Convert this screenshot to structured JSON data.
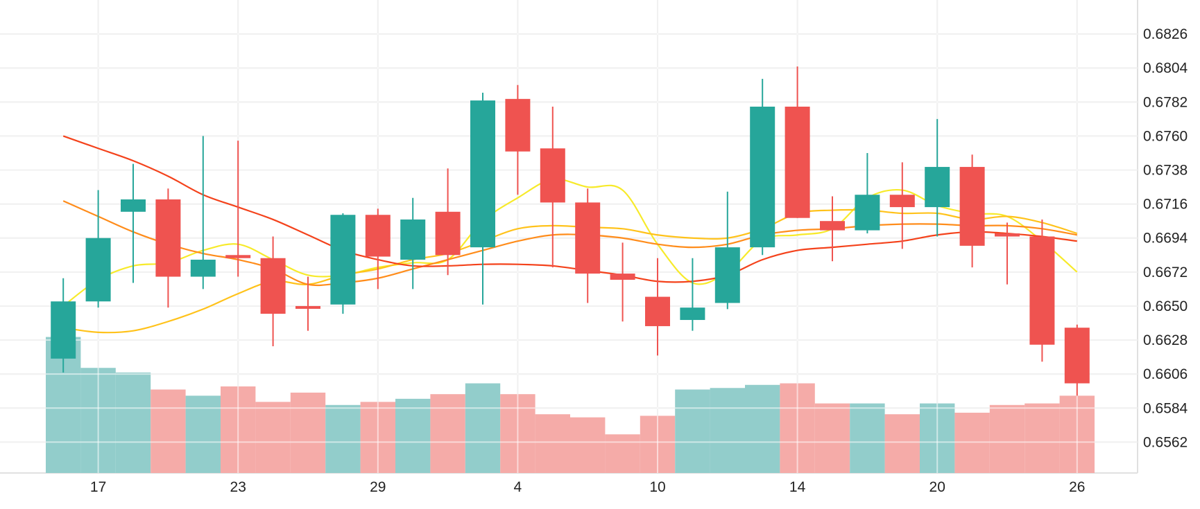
{
  "chart_data": {
    "type": "candlestick",
    "y_ticks": [
      "0.6826",
      "0.6804",
      "0.6782",
      "0.6760",
      "0.6738",
      "0.6716",
      "0.6694",
      "0.6672",
      "0.6650",
      "0.6628",
      "0.6606",
      "0.6584",
      "0.6562"
    ],
    "y_tick_values": [
      0.6826,
      0.6804,
      0.6782,
      0.676,
      0.6738,
      0.6716,
      0.6694,
      0.6672,
      0.665,
      0.6628,
      0.6606,
      0.6584,
      0.6562
    ],
    "y_axis_position": "right",
    "ylim": [
      0.6542,
      0.6848
    ],
    "x_ticks": [
      {
        "label": "17",
        "index": 1.5
      },
      {
        "label": "23",
        "index": 5.5
      },
      {
        "label": "29",
        "index": 9.5
      },
      {
        "label": "4",
        "index": 13.5
      },
      {
        "label": "10",
        "index": 17.5
      },
      {
        "label": "14",
        "index": 21.5
      },
      {
        "label": "20",
        "index": 25.5
      },
      {
        "label": "26",
        "index": 29.5
      }
    ],
    "grid": true,
    "colors": {
      "up": "#26a69a",
      "down": "#ef5350",
      "up_volume": "#92cdcb",
      "down_volume": "#f5aba8",
      "grid": "#e0e0e0",
      "ma_lines": [
        "#f7ea2a",
        "#ffc21a",
        "#ff8c1a",
        "#f4421b"
      ]
    },
    "candles": [
      {
        "o": 0.6616,
        "h": 0.6668,
        "l": 0.6607,
        "c": 0.6653
      },
      {
        "o": 0.6653,
        "h": 0.6725,
        "l": 0.6649,
        "c": 0.6694
      },
      {
        "o": 0.6711,
        "h": 0.6742,
        "l": 0.6665,
        "c": 0.6719
      },
      {
        "o": 0.6719,
        "h": 0.6726,
        "l": 0.6649,
        "c": 0.6669
      },
      {
        "o": 0.6669,
        "h": 0.676,
        "l": 0.6661,
        "c": 0.668
      },
      {
        "o": 0.6683,
        "h": 0.6757,
        "l": 0.6669,
        "c": 0.6681
      },
      {
        "o": 0.6681,
        "h": 0.6695,
        "l": 0.6624,
        "c": 0.6645
      },
      {
        "o": 0.665,
        "h": 0.6669,
        "l": 0.6634,
        "c": 0.6649
      },
      {
        "o": 0.6651,
        "h": 0.671,
        "l": 0.6645,
        "c": 0.6709
      },
      {
        "o": 0.6709,
        "h": 0.6713,
        "l": 0.6661,
        "c": 0.6682
      },
      {
        "o": 0.668,
        "h": 0.672,
        "l": 0.6661,
        "c": 0.6706
      },
      {
        "o": 0.6711,
        "h": 0.6739,
        "l": 0.667,
        "c": 0.6683
      },
      {
        "o": 0.6688,
        "h": 0.6788,
        "l": 0.6651,
        "c": 0.6783
      },
      {
        "o": 0.6784,
        "h": 0.6793,
        "l": 0.6722,
        "c": 0.675
      },
      {
        "o": 0.6752,
        "h": 0.6779,
        "l": 0.6675,
        "c": 0.6717
      },
      {
        "o": 0.6717,
        "h": 0.6726,
        "l": 0.6652,
        "c": 0.6671
      },
      {
        "o": 0.6671,
        "h": 0.6691,
        "l": 0.664,
        "c": 0.6667
      },
      {
        "o": 0.6656,
        "h": 0.6681,
        "l": 0.6618,
        "c": 0.6637
      },
      {
        "o": 0.6641,
        "h": 0.6681,
        "l": 0.6634,
        "c": 0.6649
      },
      {
        "o": 0.6652,
        "h": 0.6724,
        "l": 0.6648,
        "c": 0.6688
      },
      {
        "o": 0.6688,
        "h": 0.6797,
        "l": 0.6683,
        "c": 0.6779
      },
      {
        "o": 0.6779,
        "h": 0.6805,
        "l": 0.6707,
        "c": 0.6707
      },
      {
        "o": 0.6705,
        "h": 0.6721,
        "l": 0.6679,
        "c": 0.6699
      },
      {
        "o": 0.6699,
        "h": 0.6749,
        "l": 0.6697,
        "c": 0.6722
      },
      {
        "o": 0.6722,
        "h": 0.6743,
        "l": 0.6687,
        "c": 0.6714
      },
      {
        "o": 0.6714,
        "h": 0.6771,
        "l": 0.6695,
        "c": 0.674
      },
      {
        "o": 0.674,
        "h": 0.6748,
        "l": 0.6675,
        "c": 0.6689
      },
      {
        "o": 0.6697,
        "h": 0.6704,
        "l": 0.6664,
        "c": 0.6695
      },
      {
        "o": 0.6695,
        "h": 0.6706,
        "l": 0.6614,
        "c": 0.6625
      },
      {
        "o": 0.6636,
        "h": 0.6638,
        "l": 0.6592,
        "c": 0.66
      }
    ],
    "volume_blocks": [
      {
        "start": 0,
        "end": 1,
        "top_price": 0.663,
        "dir": "up"
      },
      {
        "start": 1,
        "end": 2,
        "top_price": 0.661,
        "dir": "up"
      },
      {
        "start": 2,
        "end": 3,
        "top_price": 0.6607,
        "dir": "up"
      },
      {
        "start": 3,
        "end": 4,
        "top_price": 0.6596,
        "dir": "down"
      },
      {
        "start": 4,
        "end": 5,
        "top_price": 0.6592,
        "dir": "up"
      },
      {
        "start": 5,
        "end": 6,
        "top_price": 0.6598,
        "dir": "down"
      },
      {
        "start": 6,
        "end": 7,
        "top_price": 0.6588,
        "dir": "down"
      },
      {
        "start": 7,
        "end": 8,
        "top_price": 0.6594,
        "dir": "down"
      },
      {
        "start": 8,
        "end": 9,
        "top_price": 0.6586,
        "dir": "up"
      },
      {
        "start": 9,
        "end": 10,
        "top_price": 0.6588,
        "dir": "down"
      },
      {
        "start": 10,
        "end": 11,
        "top_price": 0.659,
        "dir": "up"
      },
      {
        "start": 11,
        "end": 12,
        "top_price": 0.6593,
        "dir": "down"
      },
      {
        "start": 12,
        "end": 13,
        "top_price": 0.66,
        "dir": "up"
      },
      {
        "start": 13,
        "end": 14,
        "top_price": 0.6593,
        "dir": "down"
      },
      {
        "start": 14,
        "end": 15,
        "top_price": 0.658,
        "dir": "down"
      },
      {
        "start": 15,
        "end": 16,
        "top_price": 0.6578,
        "dir": "down"
      },
      {
        "start": 16,
        "end": 17,
        "top_price": 0.6567,
        "dir": "down"
      },
      {
        "start": 17,
        "end": 18,
        "top_price": 0.6579,
        "dir": "down"
      },
      {
        "start": 18,
        "end": 19,
        "top_price": 0.6596,
        "dir": "up"
      },
      {
        "start": 19,
        "end": 20,
        "top_price": 0.6597,
        "dir": "up"
      },
      {
        "start": 20,
        "end": 21,
        "top_price": 0.6599,
        "dir": "up"
      },
      {
        "start": 21,
        "end": 22,
        "top_price": 0.66,
        "dir": "down"
      },
      {
        "start": 22,
        "end": 23,
        "top_price": 0.6587,
        "dir": "down"
      },
      {
        "start": 23,
        "end": 24,
        "top_price": 0.6587,
        "dir": "up"
      },
      {
        "start": 24,
        "end": 25,
        "top_price": 0.658,
        "dir": "down"
      },
      {
        "start": 25,
        "end": 26,
        "top_price": 0.6587,
        "dir": "up"
      },
      {
        "start": 26,
        "end": 27,
        "top_price": 0.6581,
        "dir": "down"
      },
      {
        "start": 27,
        "end": 28,
        "top_price": 0.6586,
        "dir": "down"
      },
      {
        "start": 28,
        "end": 29,
        "top_price": 0.6587,
        "dir": "down"
      },
      {
        "start": 29,
        "end": 30,
        "top_price": 0.6592,
        "dir": "down"
      }
    ],
    "moving_averages": [
      {
        "color_index": 0,
        "values": [
          0.665,
          0.6667,
          0.6676,
          0.6678,
          0.6686,
          0.669,
          0.668,
          0.667,
          0.667,
          0.6675,
          0.6678,
          0.668,
          0.6705,
          0.672,
          0.6732,
          0.6727,
          0.6725,
          0.669,
          0.6665,
          0.6672,
          0.6693,
          0.6696,
          0.67,
          0.672,
          0.6725,
          0.6715,
          0.671,
          0.6708,
          0.6692,
          0.6672
        ]
      },
      {
        "color_index": 1,
        "values": [
          0.6636,
          0.6633,
          0.6634,
          0.664,
          0.6648,
          0.6658,
          0.6666,
          0.6664,
          0.667,
          0.6674,
          0.668,
          0.6684,
          0.6692,
          0.67,
          0.6702,
          0.6701,
          0.67,
          0.6696,
          0.6694,
          0.6694,
          0.67,
          0.671,
          0.6712,
          0.6712,
          0.671,
          0.671,
          0.6706,
          0.6708,
          0.6704,
          0.6697
        ]
      },
      {
        "color_index": 2,
        "values": [
          0.6718,
          0.6708,
          0.6698,
          0.669,
          0.6684,
          0.668,
          0.6674,
          0.6664,
          0.6665,
          0.6668,
          0.6674,
          0.668,
          0.6686,
          0.6692,
          0.6696,
          0.6696,
          0.6694,
          0.669,
          0.6688,
          0.669,
          0.6696,
          0.6699,
          0.67,
          0.6702,
          0.6703,
          0.6703,
          0.6702,
          0.6702,
          0.67,
          0.6696
        ]
      },
      {
        "color_index": 3,
        "values": [
          0.676,
          0.6752,
          0.6744,
          0.6734,
          0.6722,
          0.6714,
          0.6706,
          0.6696,
          0.6686,
          0.668,
          0.6676,
          0.6676,
          0.6677,
          0.6677,
          0.6676,
          0.6673,
          0.667,
          0.6666,
          0.6666,
          0.667,
          0.668,
          0.6686,
          0.6688,
          0.669,
          0.6692,
          0.6696,
          0.6698,
          0.6697,
          0.6695,
          0.6692
        ]
      }
    ]
  }
}
